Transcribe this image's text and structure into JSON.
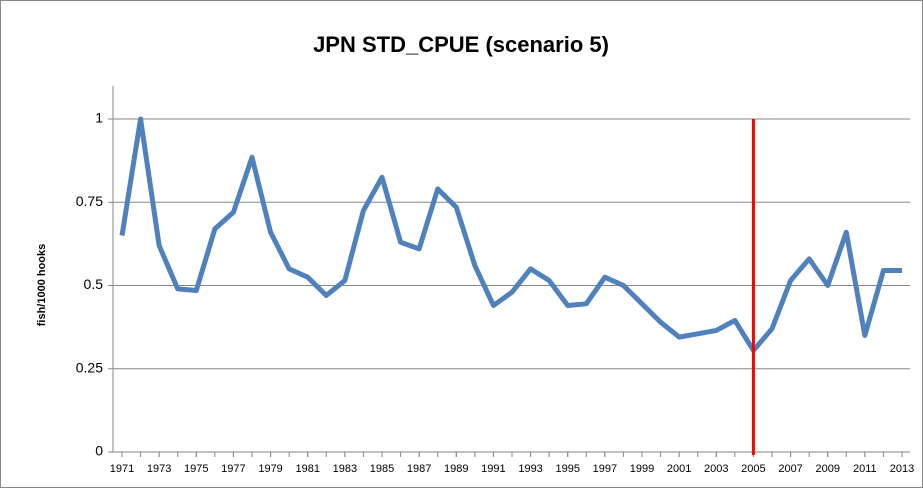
{
  "chart_data": {
    "type": "line",
    "title": "JPN STD_CPUE (scenario 5)",
    "y_label": "fish/1000 hooks",
    "x": [
      1971,
      1972,
      1973,
      1974,
      1975,
      1976,
      1977,
      1978,
      1979,
      1980,
      1981,
      1982,
      1983,
      1984,
      1985,
      1986,
      1987,
      1988,
      1989,
      1990,
      1991,
      1992,
      1993,
      1994,
      1995,
      1996,
      1997,
      1998,
      1999,
      2000,
      2001,
      2002,
      2003,
      2004,
      2005,
      2006,
      2007,
      2008,
      2009,
      2010,
      2011,
      2012,
      2013
    ],
    "series": [
      {
        "name": "JPN STD_CPUE",
        "color": "#4f81bd",
        "values": [
          0.65,
          1.0,
          0.62,
          0.49,
          0.485,
          0.67,
          0.72,
          0.885,
          0.66,
          0.55,
          0.525,
          0.47,
          0.515,
          0.725,
          0.825,
          0.63,
          0.61,
          0.79,
          0.735,
          0.56,
          0.44,
          0.48,
          0.55,
          0.515,
          0.44,
          0.445,
          0.525,
          0.5,
          0.445,
          0.39,
          0.345,
          0.355,
          0.365,
          0.395,
          0.305,
          0.37,
          0.515,
          0.58,
          0.5,
          0.66,
          0.35,
          0.545,
          0.545
        ]
      }
    ],
    "xlim": [
      1971,
      2013
    ],
    "xticks": [
      1971,
      1973,
      1975,
      1977,
      1979,
      1981,
      1983,
      1985,
      1987,
      1989,
      1991,
      1993,
      1995,
      1997,
      1999,
      2001,
      2003,
      2005,
      2007,
      2009,
      2011,
      2013
    ],
    "ylim": [
      0,
      1.1
    ],
    "yticks": [
      0,
      0.25,
      0.5,
      0.75,
      1
    ],
    "grid": true,
    "reference_line": {
      "x": 2005,
      "y": [
        0,
        1
      ],
      "color": "#ff0000"
    }
  }
}
